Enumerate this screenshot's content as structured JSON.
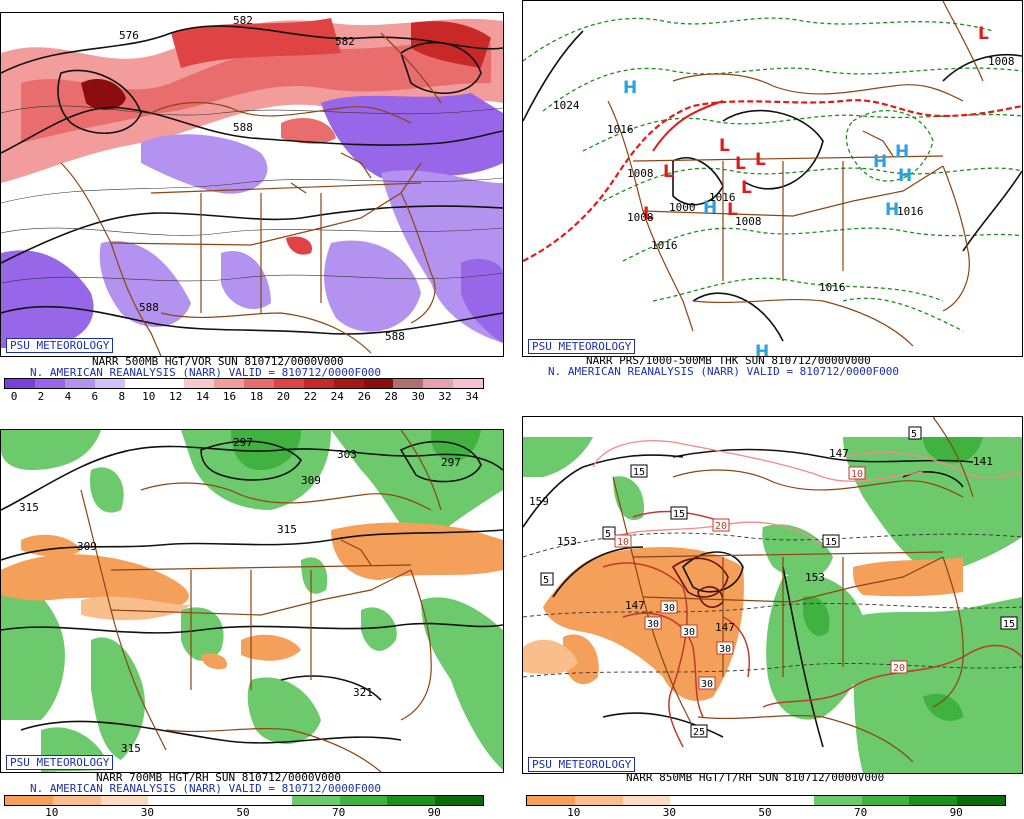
{
  "panels": [
    {
      "tag": "PSU METEOROLOGY",
      "caption1": "NARR 500MB HGT/VOR SUN 810712/0000V000",
      "caption2": "N. AMERICAN REANALYSIS (NARR) VALID = 810712/0000F000",
      "map_labels": [
        "576",
        "582",
        "582",
        "588",
        "588",
        "588"
      ],
      "colorbar": {
        "colors": [
          "#7b3fe0",
          "#9866e8",
          "#b493f0",
          "#d2c0f8",
          "#ffffff",
          "#ffffff",
          "#f7c9c9",
          "#f29c9c",
          "#ea6d6d",
          "#e04343",
          "#c92828",
          "#a81616",
          "#8b0d0d",
          "#b07070",
          "#e8a0b0",
          "#f5c0d0"
        ],
        "ticks": [
          "0",
          "2",
          "4",
          "6",
          "8",
          "10",
          "12",
          "14",
          "16",
          "18",
          "20",
          "22",
          "24",
          "26",
          "28",
          "30",
          "32",
          "34"
        ]
      }
    },
    {
      "tag": "PSU METEOROLOGY",
      "caption1": "NARR PRS/1000-500MB THK SUN 810712/0000V000",
      "caption2": "N. AMERICAN REANALYSIS (NARR) VALID = 810712/0000F000",
      "map_labels": [
        "1024",
        "1016",
        "1008",
        "1008",
        "1016",
        "1016",
        "1008",
        "1000",
        "1008",
        "1016",
        "1016"
      ],
      "highs": [
        "H",
        "H",
        "H",
        "H",
        "H",
        "H",
        "H"
      ],
      "lows": [
        "L",
        "L",
        "L",
        "L",
        "L",
        "L",
        "L",
        "L"
      ]
    },
    {
      "tag": "PSU METEOROLOGY",
      "caption1": "NARR 700MB HGT/RH SUN 810712/0000V000",
      "caption2": "N. AMERICAN REANALYSIS (NARR) VALID = 810712/0000F000",
      "map_labels": [
        "315",
        "309",
        "297",
        "303",
        "309",
        "297",
        "315",
        "321",
        "315"
      ],
      "colorbar": {
        "colors": [
          "#f5a05a",
          "#f8be8c",
          "#fcdcc0",
          "#ffffff",
          "#ffffff",
          "#ffffff",
          "#6cc96c",
          "#3fb23f",
          "#1d8f1d",
          "#0b6b0b"
        ],
        "ticks": [
          "10",
          "30",
          "50",
          "70",
          "90"
        ]
      }
    },
    {
      "tag": "PSU METEOROLOGY",
      "caption1": "NARR 850MB HGT/T/RH SUN 810712/0000V000",
      "caption2": "",
      "map_labels": [
        "159",
        "153",
        "147",
        "153",
        "147",
        "147",
        "141"
      ],
      "temp_labels": [
        "5",
        "15",
        "10",
        "5",
        "15",
        "20",
        "10",
        "15",
        "5",
        "15",
        "30",
        "30",
        "30",
        "30",
        "30",
        "25",
        "20"
      ],
      "colorbar": {
        "colors": [
          "#f5a05a",
          "#f8be8c",
          "#fcdcc0",
          "#ffffff",
          "#ffffff",
          "#ffffff",
          "#6cc96c",
          "#3fb23f",
          "#1d8f1d",
          "#0b6b0b"
        ],
        "ticks": [
          "10",
          "30",
          "50",
          "70",
          "90"
        ]
      }
    }
  ]
}
